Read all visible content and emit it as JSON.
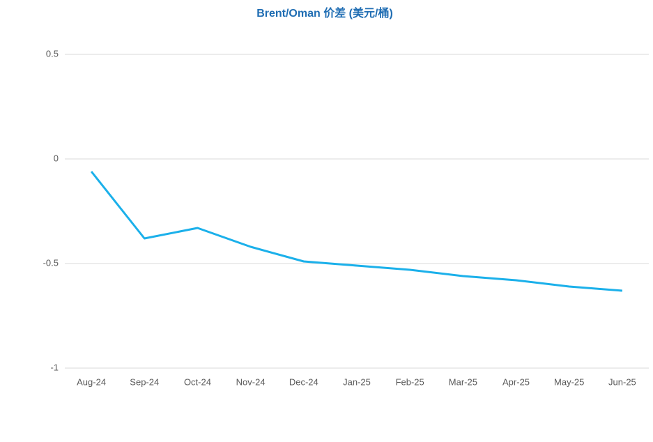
{
  "chart_data": {
    "type": "line",
    "title": "Brent/Oman 价差 (美元/桶)",
    "categories": [
      "Aug-24",
      "Sep-24",
      "Oct-24",
      "Nov-24",
      "Dec-24",
      "Jan-25",
      "Feb-25",
      "Mar-25",
      "Apr-25",
      "May-25",
      "Jun-25"
    ],
    "series": [
      {
        "name": "Brent/Oman",
        "color": "#1bb0ea",
        "values": [
          -0.06,
          -0.38,
          -0.33,
          -0.42,
          -0.49,
          -0.51,
          -0.53,
          -0.56,
          -0.58,
          -0.61,
          -0.63
        ]
      }
    ],
    "ylim": [
      -1,
      0.5
    ],
    "yticks": [
      -1,
      -0.5,
      0,
      0.5
    ],
    "grid": true
  }
}
